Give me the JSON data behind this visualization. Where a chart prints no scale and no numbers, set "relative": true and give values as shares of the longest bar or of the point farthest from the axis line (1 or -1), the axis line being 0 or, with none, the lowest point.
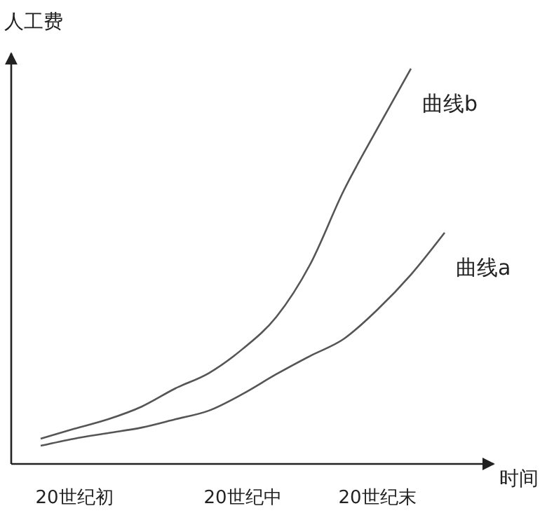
{
  "chart_data": {
    "type": "line",
    "relative": true,
    "ylabel": "人工费",
    "xlabel": "时间",
    "categories": [
      null,
      "20世纪初",
      null,
      null,
      null,
      null,
      "20世纪中",
      null,
      null,
      null,
      "20世纪末",
      null,
      null
    ],
    "series": [
      {
        "name": "曲线b",
        "color": "#555555",
        "values": [
          0.064,
          0.089,
          0.113,
          0.145,
          0.191,
          0.23,
          0.291,
          0.372,
          0.504,
          0.691,
          0.848,
          1,
          null
        ]
      },
      {
        "name": "曲线a",
        "color": "#555555",
        "values": [
          0.046,
          0.064,
          0.078,
          0.092,
          0.113,
          0.135,
          0.177,
          0.227,
          0.273,
          0.316,
          0.39,
          0.479,
          0.585
        ]
      }
    ],
    "marker": "none",
    "line_style": "solid"
  }
}
